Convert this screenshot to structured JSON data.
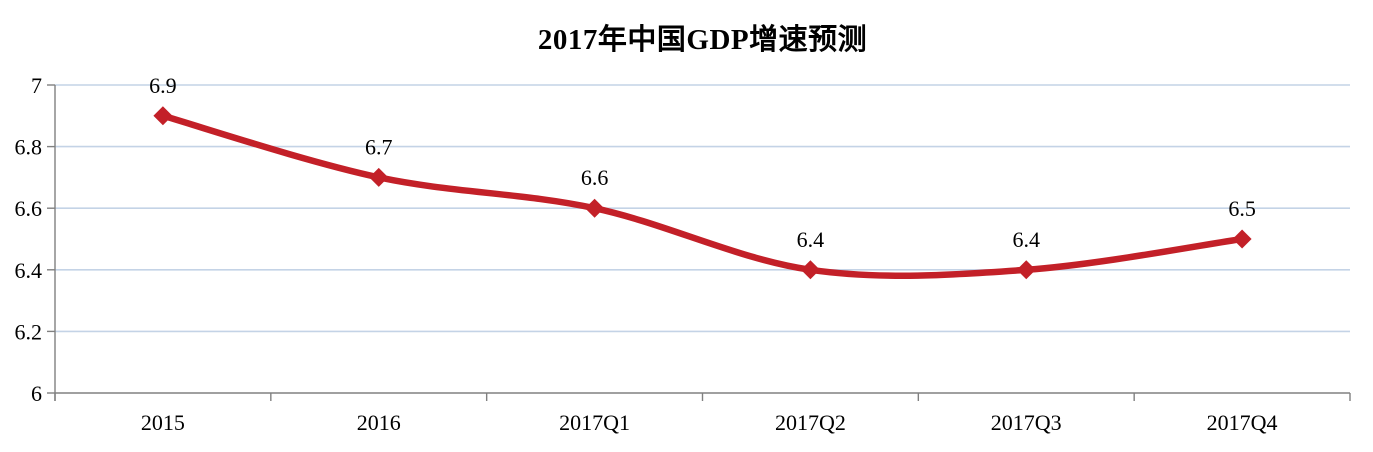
{
  "chart_data": {
    "type": "line",
    "title": "2017年中国GDP增速预测",
    "categories": [
      "2015",
      "2016",
      "2017Q1",
      "2017Q2",
      "2017Q3",
      "2017Q4"
    ],
    "values": [
      6.9,
      6.7,
      6.6,
      6.4,
      6.4,
      6.5
    ],
    "data_labels": [
      "6.9",
      "6.7",
      "6.6",
      "6.4",
      "6.4",
      "6.5"
    ],
    "xlabel": "",
    "ylabel": "",
    "ylim": [
      6,
      7
    ],
    "yticks": [
      6,
      6.2,
      6.4,
      6.6,
      6.8,
      7
    ],
    "ytick_labels": [
      "6",
      "6.2",
      "6.4",
      "6.6",
      "6.8",
      "7"
    ],
    "grid": true,
    "legend": "none",
    "line_style": {
      "smooth": true,
      "marker": "diamond"
    },
    "colors": {
      "series": "#C32028",
      "gridline": "#C4D3E6",
      "axis": "#808080",
      "text": "#000000",
      "background": "#FFFFFF"
    }
  }
}
